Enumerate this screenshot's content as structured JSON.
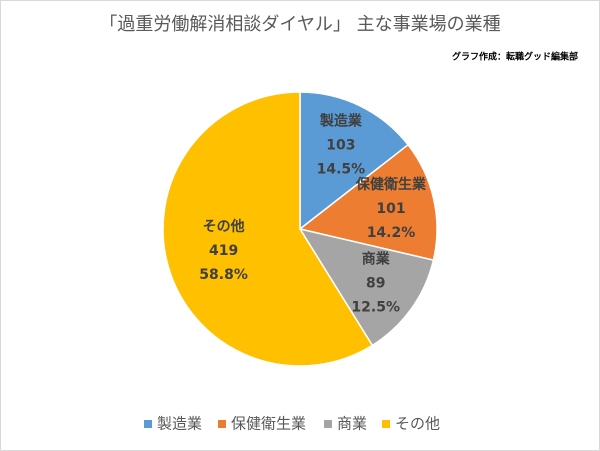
{
  "chart_data": {
    "type": "pie",
    "title": "「過重労働解消相談ダイヤル」 主な事業場の業種",
    "subtitle": "グラフ作成：転職グッド編集部",
    "categories": [
      "製造業",
      "保健衛生業",
      "商業",
      "その他"
    ],
    "values": [
      103,
      101,
      89,
      419
    ],
    "percent_labels": [
      "14.5%",
      "14.2%",
      "12.5%",
      "58.8%"
    ],
    "colors": [
      "#5b9bd5",
      "#ed7d31",
      "#a5a5a5",
      "#ffc000"
    ],
    "legend": "bottom"
  }
}
